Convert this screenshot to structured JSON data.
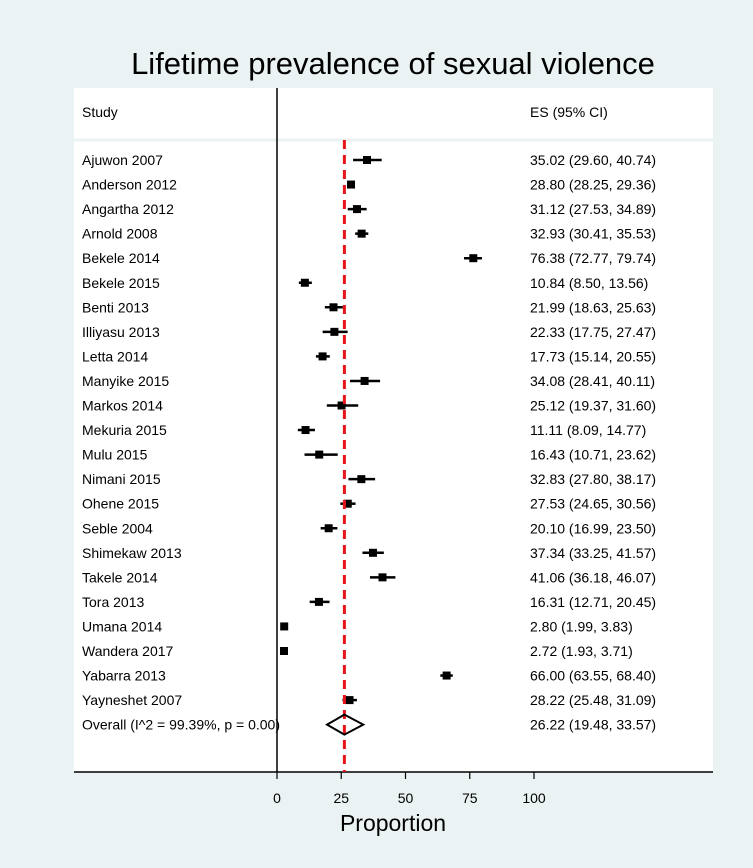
{
  "chart_data": {
    "type": "forest",
    "title": "Lifetime prevalence of sexual violence",
    "xlabel": "Proportion",
    "column_headers": {
      "study": "Study",
      "es": "ES (95% CI)"
    },
    "xlim": [
      0,
      100
    ],
    "xticks": [
      "0",
      "25",
      "50",
      "75",
      "100"
    ],
    "reference_line": 26.22,
    "studies": [
      {
        "name": "Ajuwon 2007",
        "es": 35.02,
        "lo": 29.6,
        "hi": 40.74,
        "es_text": "35.02 (29.60, 40.74)"
      },
      {
        "name": "Anderson 2012",
        "es": 28.8,
        "lo": 28.25,
        "hi": 29.36,
        "es_text": "28.80 (28.25, 29.36)"
      },
      {
        "name": "Angartha 2012",
        "es": 31.12,
        "lo": 27.53,
        "hi": 34.89,
        "es_text": "31.12 (27.53, 34.89)"
      },
      {
        "name": "Arnold 2008",
        "es": 32.93,
        "lo": 30.41,
        "hi": 35.53,
        "es_text": "32.93 (30.41, 35.53)"
      },
      {
        "name": "Bekele 2014",
        "es": 76.38,
        "lo": 72.77,
        "hi": 79.74,
        "es_text": "76.38 (72.77, 79.74)"
      },
      {
        "name": "Bekele 2015",
        "es": 10.84,
        "lo": 8.5,
        "hi": 13.56,
        "es_text": "10.84 (8.50, 13.56)"
      },
      {
        "name": "Benti 2013",
        "es": 21.99,
        "lo": 18.63,
        "hi": 25.63,
        "es_text": "21.99 (18.63, 25.63)"
      },
      {
        "name": "Illiyasu 2013",
        "es": 22.33,
        "lo": 17.75,
        "hi": 27.47,
        "es_text": "22.33 (17.75, 27.47)"
      },
      {
        "name": "Letta 2014",
        "es": 17.73,
        "lo": 15.14,
        "hi": 20.55,
        "es_text": "17.73 (15.14, 20.55)"
      },
      {
        "name": "Manyike 2015",
        "es": 34.08,
        "lo": 28.41,
        "hi": 40.11,
        "es_text": "34.08 (28.41, 40.11)"
      },
      {
        "name": "Markos 2014",
        "es": 25.12,
        "lo": 19.37,
        "hi": 31.6,
        "es_text": "25.12 (19.37, 31.60)"
      },
      {
        "name": "Mekuria 2015",
        "es": 11.11,
        "lo": 8.09,
        "hi": 14.77,
        "es_text": "11.11 (8.09, 14.77)"
      },
      {
        "name": "Mulu 2015",
        "es": 16.43,
        "lo": 10.71,
        "hi": 23.62,
        "es_text": "16.43 (10.71, 23.62)"
      },
      {
        "name": "Nimani 2015",
        "es": 32.83,
        "lo": 27.8,
        "hi": 38.17,
        "es_text": "32.83 (27.80, 38.17)"
      },
      {
        "name": "Ohene 2015",
        "es": 27.53,
        "lo": 24.65,
        "hi": 30.56,
        "es_text": "27.53 (24.65, 30.56)"
      },
      {
        "name": "Seble 2004",
        "es": 20.1,
        "lo": 16.99,
        "hi": 23.5,
        "es_text": "20.10 (16.99, 23.50)"
      },
      {
        "name": "Shimekaw 2013",
        "es": 37.34,
        "lo": 33.25,
        "hi": 41.57,
        "es_text": "37.34 (33.25, 41.57)"
      },
      {
        "name": "Takele 2014",
        "es": 41.06,
        "lo": 36.18,
        "hi": 46.07,
        "es_text": "41.06 (36.18, 46.07)"
      },
      {
        "name": "Tora 2013",
        "es": 16.31,
        "lo": 12.71,
        "hi": 20.45,
        "es_text": "16.31 (12.71, 20.45)"
      },
      {
        "name": "Umana 2014",
        "es": 2.8,
        "lo": 1.99,
        "hi": 3.83,
        "es_text": "2.80 (1.99, 3.83)"
      },
      {
        "name": "Wandera 2017",
        "es": 2.72,
        "lo": 1.93,
        "hi": 3.71,
        "es_text": "2.72 (1.93, 3.71)"
      },
      {
        "name": "Yabarra 2013",
        "es": 66.0,
        "lo": 63.55,
        "hi": 68.4,
        "es_text": "66.00 (63.55, 68.40)"
      },
      {
        "name": "Yayneshet 2007",
        "es": 28.22,
        "lo": 25.48,
        "hi": 31.09,
        "es_text": "28.22 (25.48, 31.09)"
      }
    ],
    "overall": {
      "name": "Overall  (I^2 = 99.39%, p = 0.00)",
      "es": 26.22,
      "lo": 19.48,
      "hi": 33.57,
      "es_text": "26.22 (19.48, 33.57)"
    },
    "colors": {
      "reference_line": "#e8141b",
      "marker": "#000000",
      "background": "#eaf2f3",
      "panel": "#ffffff"
    }
  }
}
